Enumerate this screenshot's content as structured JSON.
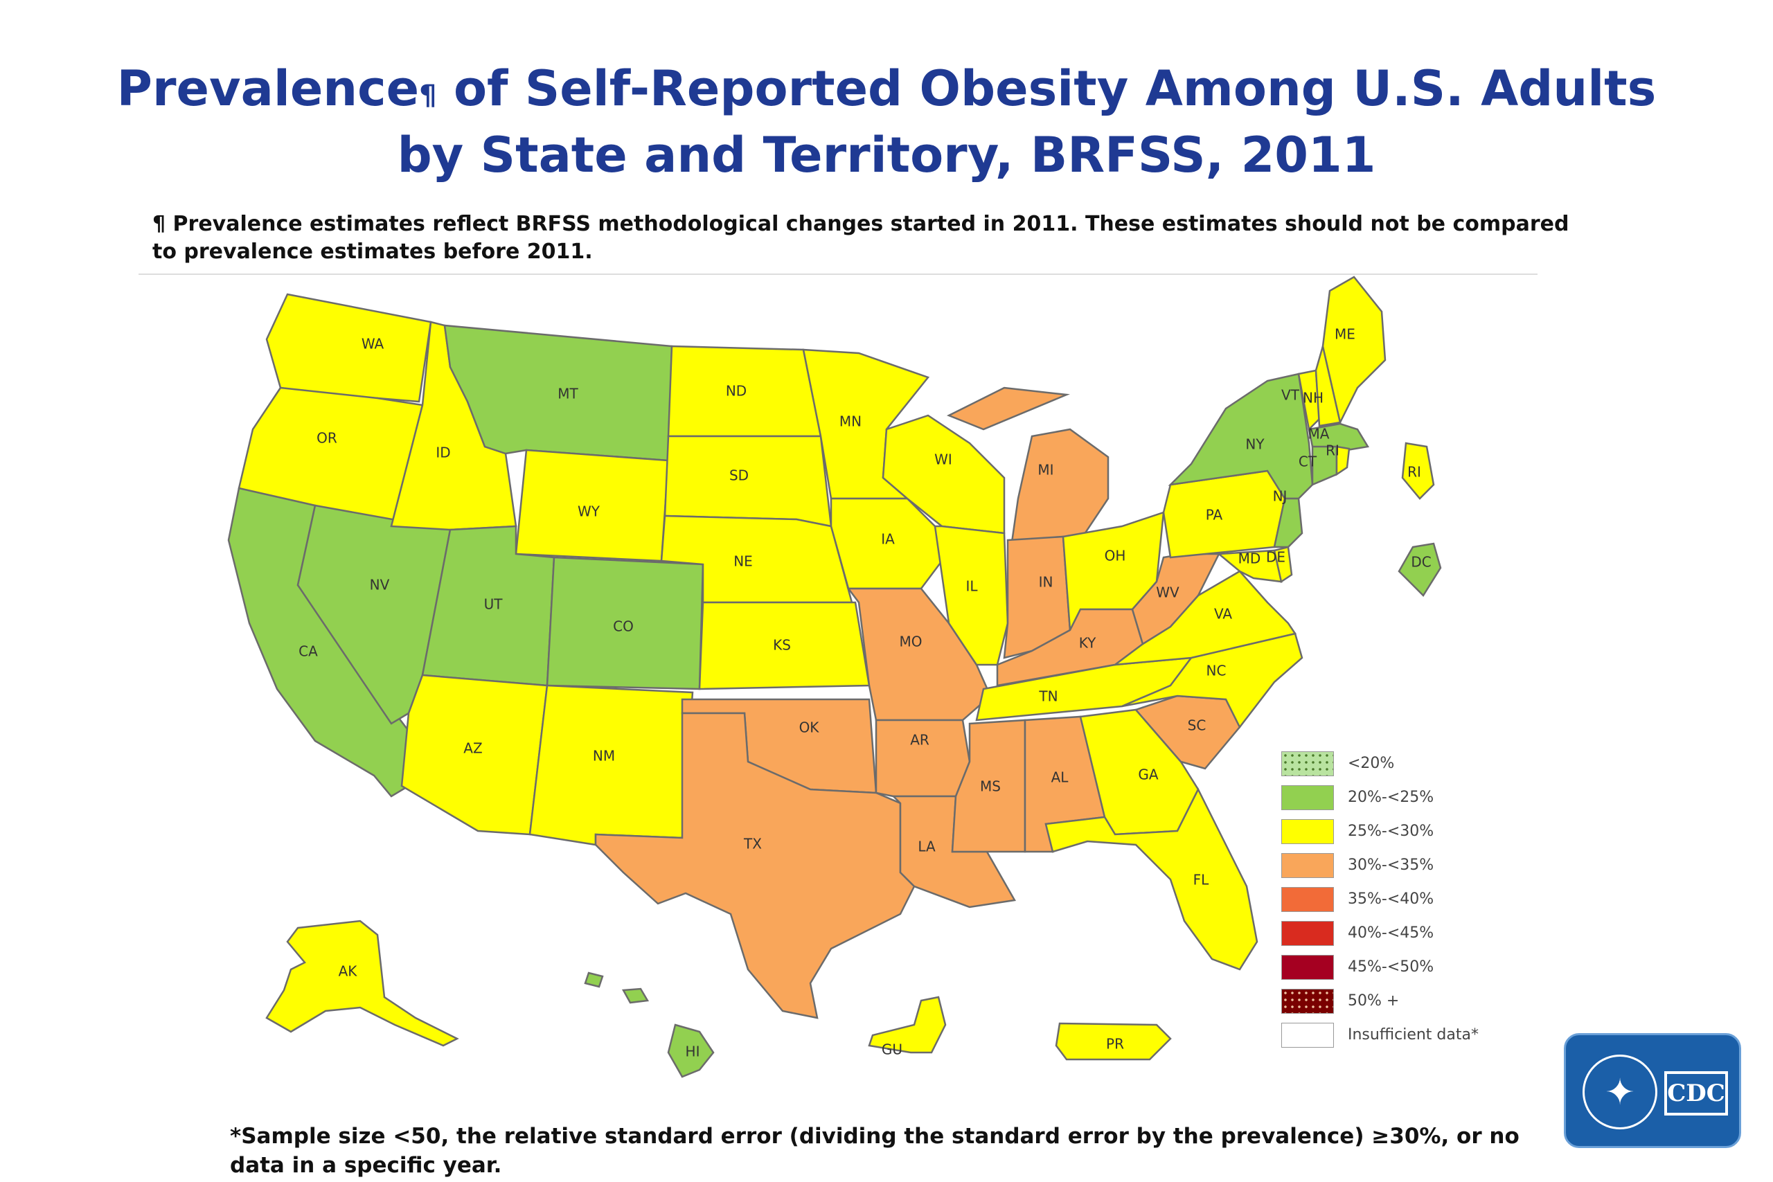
{
  "title": {
    "line1": "Prevalence",
    "marker": "¶",
    "line1_rest": " of Self-Reported Obesity Among U.S. Adults",
    "line2": "by State and Territory, BRFSS, 2011"
  },
  "note_top": "¶ Prevalence estimates reflect BRFSS methodological changes started in 2011. These estimates should not be compared to prevalence estimates before 2011.",
  "note_bottom": "*Sample size <50, the relative standard error (dividing the standard error by the prevalence) ≥30%, or no data in a specific year.",
  "legend": [
    {
      "label": "<20%",
      "color": "#b9e3a0",
      "pattern": "dots"
    },
    {
      "label": "20%-<25%",
      "color": "#92d050"
    },
    {
      "label": "25%-<30%",
      "color": "#ffff00"
    },
    {
      "label": "30%-<35%",
      "color": "#f9a65a"
    },
    {
      "label": "35%-<40%",
      "color": "#f26b38"
    },
    {
      "label": "40%-<45%",
      "color": "#d92b1f"
    },
    {
      "label": "45%-<50%",
      "color": "#a50021"
    },
    {
      "label": "50% +",
      "color": "#7a0000",
      "pattern": "dots"
    },
    {
      "label": "Insufficient data*",
      "color": "#ffffff"
    }
  ],
  "states": {
    "WA": "25%-<30%",
    "OR": "25%-<30%",
    "CA": "20%-<25%",
    "NV": "20%-<25%",
    "ID": "25%-<30%",
    "MT": "20%-<25%",
    "WY": "25%-<30%",
    "UT": "20%-<25%",
    "CO": "20%-<25%",
    "AZ": "25%-<30%",
    "NM": "25%-<30%",
    "ND": "25%-<30%",
    "SD": "25%-<30%",
    "NE": "25%-<30%",
    "KS": "25%-<30%",
    "OK": "30%-<35%",
    "TX": "30%-<35%",
    "MN": "25%-<30%",
    "IA": "25%-<30%",
    "MO": "30%-<35%",
    "AR": "30%-<35%",
    "LA": "30%-<35%",
    "WI": "25%-<30%",
    "IL": "25%-<30%",
    "MI": "30%-<35%",
    "IN": "30%-<35%",
    "OH": "25%-<30%",
    "KY": "30%-<35%",
    "TN": "25%-<30%",
    "MS": "30%-<35%",
    "AL": "30%-<35%",
    "GA": "25%-<30%",
    "FL": "25%-<30%",
    "SC": "30%-<35%",
    "NC": "25%-<30%",
    "VA": "25%-<30%",
    "WV": "30%-<35%",
    "PA": "25%-<30%",
    "NY": "20%-<25%",
    "VT": "25%-<30%",
    "NH": "25%-<30%",
    "ME": "25%-<30%",
    "MA": "20%-<25%",
    "RI": "25%-<30%",
    "CT": "20%-<25%",
    "NJ": "20%-<25%",
    "DE": "25%-<30%",
    "MD": "25%-<30%",
    "DC": "20%-<25%",
    "AK": "25%-<30%",
    "HI": "20%-<25%",
    "GU": "25%-<30%",
    "PR": "25%-<30%"
  },
  "logo": {
    "text": "CDC"
  }
}
